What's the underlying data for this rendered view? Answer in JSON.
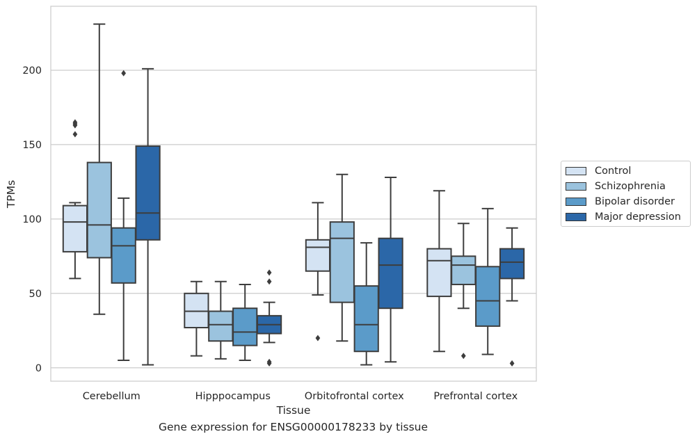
{
  "chart_data": {
    "type": "box",
    "title": "",
    "caption": "Gene expression for ENSG00000178233 by tissue",
    "xlabel": "Tissue",
    "ylabel": "TPMs",
    "ylim": [
      -9,
      243
    ],
    "yticks": [
      0,
      50,
      100,
      150,
      200
    ],
    "grid": "horizontal",
    "legend_position": "right",
    "categories": [
      "Cerebellum",
      "Hipppocampus",
      "Orbitofrontal cortex",
      "Prefrontal cortex"
    ],
    "series": [
      {
        "name": "Control",
        "color": "#d4e3f3",
        "boxes": [
          {
            "whisker_low": 60,
            "q1": 78,
            "median": 98,
            "q3": 109,
            "whisker_high": 111,
            "outliers": [
              157,
              163,
              164,
              165
            ]
          },
          {
            "whisker_low": 8,
            "q1": 27,
            "median": 38,
            "q3": 50,
            "whisker_high": 58,
            "outliers": []
          },
          {
            "whisker_low": 49,
            "q1": 65,
            "median": 81,
            "q3": 86,
            "whisker_high": 111,
            "outliers": [
              20
            ]
          },
          {
            "whisker_low": 11,
            "q1": 48,
            "median": 72,
            "q3": 80,
            "whisker_high": 119,
            "outliers": []
          }
        ]
      },
      {
        "name": "Schizophrenia",
        "color": "#9bc3de",
        "boxes": [
          {
            "whisker_low": 36,
            "q1": 74,
            "median": 96,
            "q3": 138,
            "whisker_high": 231,
            "outliers": []
          },
          {
            "whisker_low": 6,
            "q1": 18,
            "median": 29,
            "q3": 38,
            "whisker_high": 58,
            "outliers": []
          },
          {
            "whisker_low": 18,
            "q1": 44,
            "median": 87,
            "q3": 98,
            "whisker_high": 130,
            "outliers": []
          },
          {
            "whisker_low": 40,
            "q1": 56,
            "median": 69,
            "q3": 75,
            "whisker_high": 97,
            "outliers": [
              8
            ]
          }
        ]
      },
      {
        "name": "Bipolar disorder",
        "color": "#5b9bc9",
        "boxes": [
          {
            "whisker_low": 5,
            "q1": 57,
            "median": 82,
            "q3": 94,
            "whisker_high": 114,
            "outliers": [
              198
            ]
          },
          {
            "whisker_low": 5,
            "q1": 15,
            "median": 24,
            "q3": 40,
            "whisker_high": 56,
            "outliers": []
          },
          {
            "whisker_low": 2,
            "q1": 11,
            "median": 29,
            "q3": 55,
            "whisker_high": 84,
            "outliers": []
          },
          {
            "whisker_low": 9,
            "q1": 28,
            "median": 45,
            "q3": 68,
            "whisker_high": 107,
            "outliers": []
          }
        ]
      },
      {
        "name": "Major depression",
        "color": "#2b67a8",
        "boxes": [
          {
            "whisker_low": 2,
            "q1": 86,
            "median": 104,
            "q3": 149,
            "whisker_high": 201,
            "outliers": []
          },
          {
            "whisker_low": 17,
            "q1": 23,
            "median": 29,
            "q3": 35,
            "whisker_high": 44,
            "outliers": [
              3,
              4,
              58,
              64
            ]
          },
          {
            "whisker_low": 4,
            "q1": 40,
            "median": 69,
            "q3": 87,
            "whisker_high": 128,
            "outliers": []
          },
          {
            "whisker_low": 45,
            "q1": 60,
            "median": 71,
            "q3": 80,
            "whisker_high": 94,
            "outliers": [
              3
            ]
          }
        ]
      }
    ]
  }
}
